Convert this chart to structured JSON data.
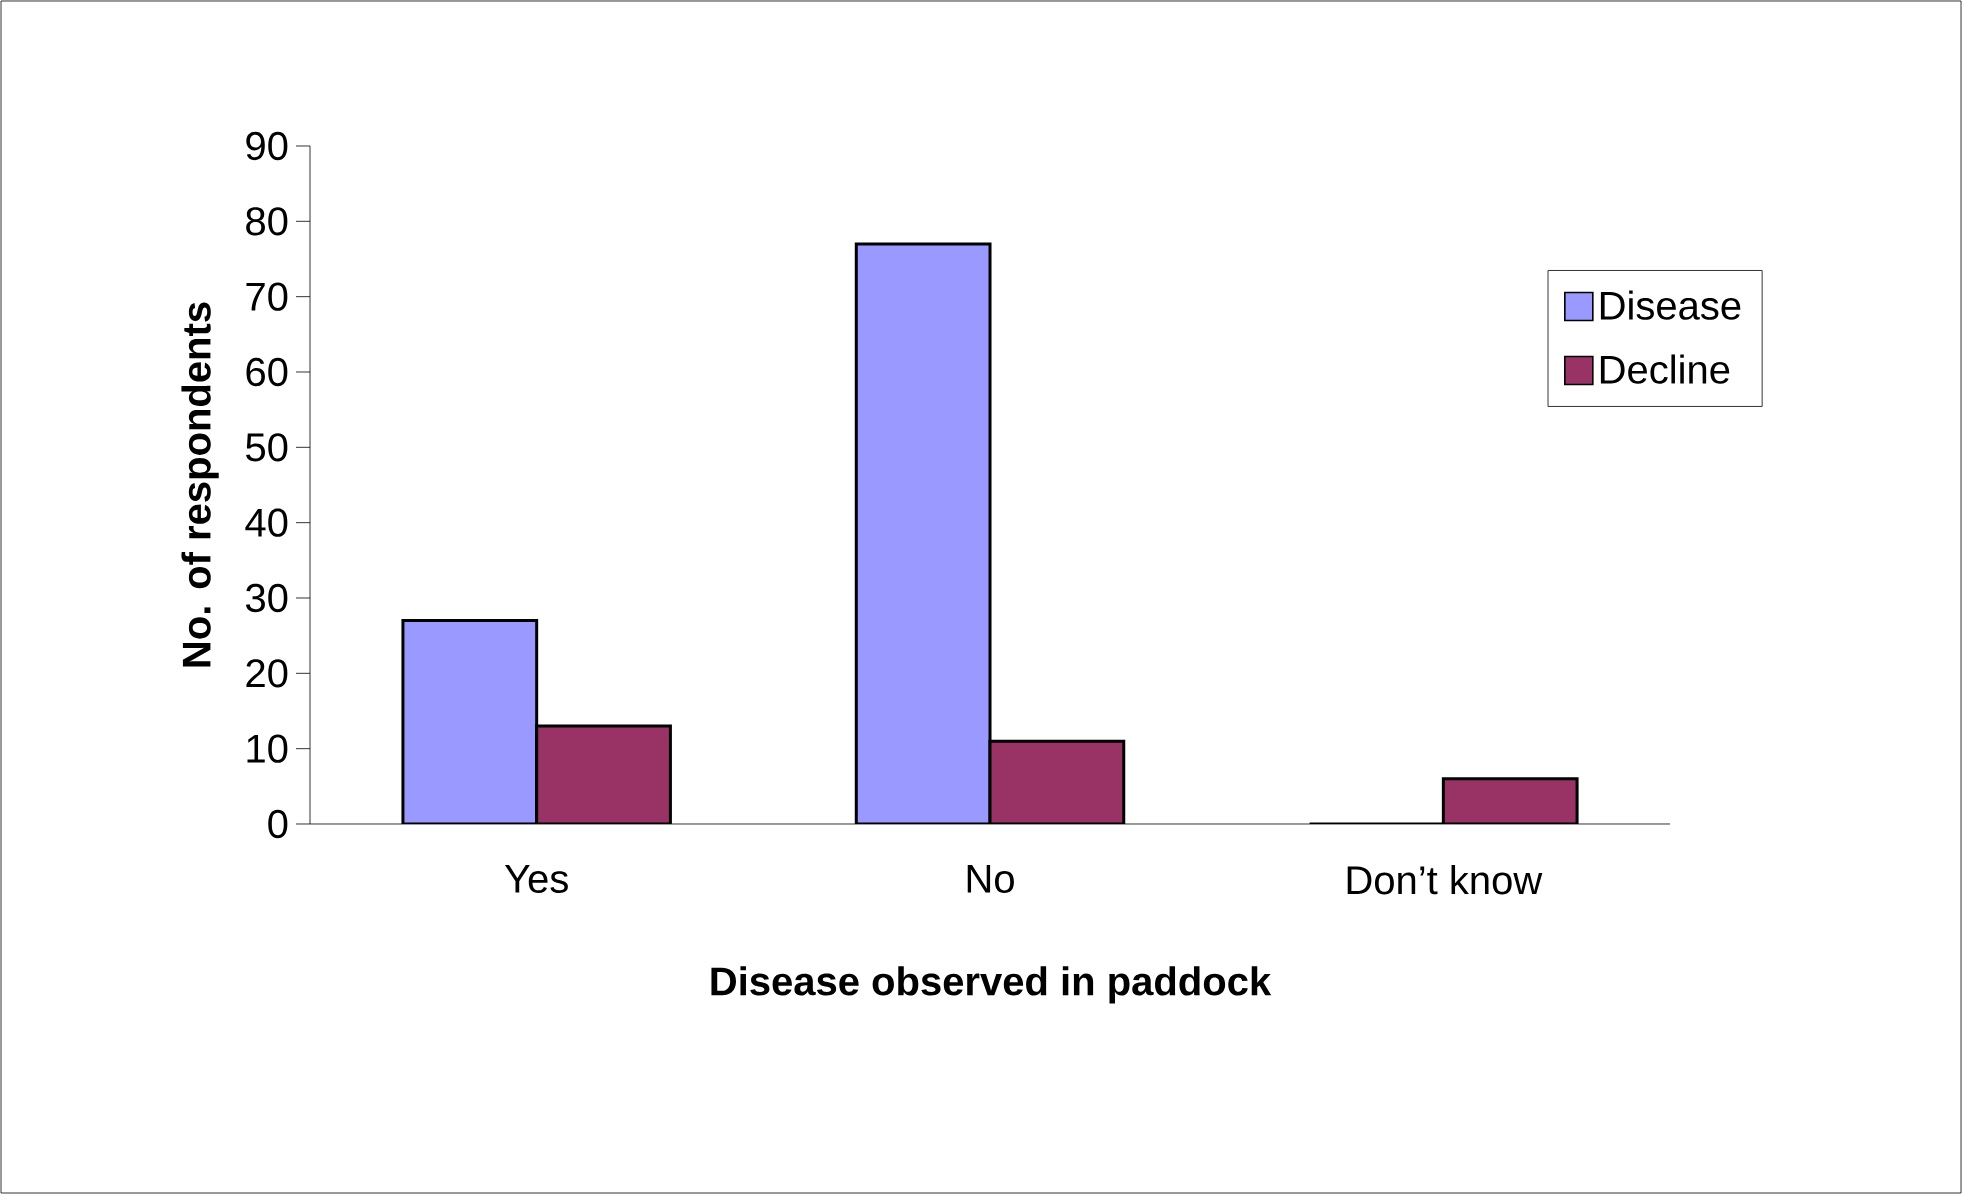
{
  "chart_data": {
    "type": "bar",
    "xlabel": "Disease observed in paddock",
    "ylabel": "No. of respondents",
    "categories": [
      "Yes",
      "No",
      "Don’t know"
    ],
    "series": [
      {
        "name": "Disease",
        "color": "#9999ff",
        "values": [
          27,
          77,
          0
        ]
      },
      {
        "name": "Decline",
        "color": "#993366",
        "values": [
          13,
          11,
          6
        ]
      }
    ],
    "ylim": [
      0,
      90
    ],
    "yticks": [
      0,
      10,
      20,
      30,
      40,
      50,
      60,
      70,
      80,
      90
    ],
    "legend": "right",
    "grid": false
  }
}
